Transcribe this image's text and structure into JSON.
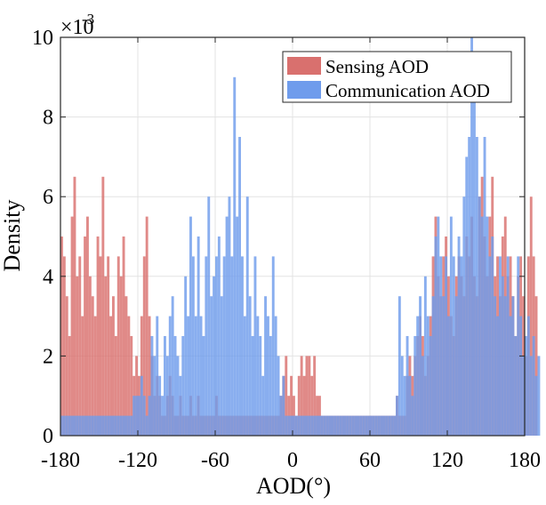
{
  "chart_data": {
    "type": "histogram",
    "title": "",
    "xlabel": "AOD(°)",
    "ylabel": "Density",
    "y_exponent_label": "×10",
    "y_exponent_power": "-3",
    "xlim": [
      -180,
      180
    ],
    "ylim": [
      0,
      0.01
    ],
    "x_ticks": [
      -180,
      -120,
      -60,
      0,
      60,
      120,
      180
    ],
    "x_tick_labels": [
      "-180",
      "-120",
      "-60",
      "0",
      "60",
      "120",
      "180"
    ],
    "y_ticks": [
      0,
      0.002,
      0.004,
      0.006,
      0.008,
      0.01
    ],
    "y_tick_labels": [
      "0",
      "2",
      "4",
      "6",
      "8",
      "10"
    ],
    "bin_width": 2,
    "grid": true,
    "legend_position": "top-right",
    "series": [
      {
        "name": "Sensing AOD",
        "color": "#d9706e",
        "bin_edges_start": -180,
        "values": [
          0.005,
          0.0045,
          0.0035,
          0.0025,
          0.0055,
          0.0065,
          0.004,
          0.0045,
          0.003,
          0.005,
          0.0055,
          0.004,
          0.0035,
          0.003,
          0.005,
          0.0045,
          0.0065,
          0.004,
          0.0045,
          0.003,
          0.0035,
          0.0025,
          0.0045,
          0.004,
          0.005,
          0.0035,
          0.003,
          0.0025,
          0.0015,
          0.002,
          0.0015,
          0.003,
          0.0045,
          0.0055,
          0.003,
          0.002,
          0.001,
          0.0015,
          0.001,
          0.0005,
          0.0005,
          0.001,
          0.0015,
          0.001,
          0.0005,
          0.0005,
          0.001,
          0.0005,
          0.0005,
          0.0005,
          0.001,
          0.0005,
          0.0005,
          0.001,
          0.0005,
          0.0005,
          0.0005,
          0.0005,
          0.0005,
          0.0005,
          0.001,
          0.0005,
          0.0005,
          0.0005,
          0.0005,
          0.0005,
          0.0005,
          0.0005,
          0.0005,
          0.0005,
          0.0005,
          0.0005,
          0.0005,
          0.0005,
          0.0005,
          0.0005,
          0.0005,
          0.0005,
          0.0005,
          0.0005,
          0.0005,
          0.0005,
          0.0005,
          0.0005,
          0.0005,
          0.001,
          0.0015,
          0.002,
          0.001,
          0.0015,
          0.001,
          0.0005,
          0.0015,
          0.002,
          0.0015,
          0.002,
          0.002,
          0.0015,
          0.002,
          0.001,
          0.001,
          0.0005,
          0.0005,
          0.0005,
          0.0005,
          0.0005,
          0.0005,
          0.0005,
          0.0005,
          0.0005,
          0.0005,
          0.0005,
          0.0005,
          0.0005,
          0.0005,
          0.0005,
          0.0005,
          0.0005,
          0.0005,
          0.0005,
          0.0005,
          0.0005,
          0.0005,
          0.0005,
          0.0005,
          0.0005,
          0.0005,
          0.0005,
          0.0005,
          0.0005,
          0.001,
          0.0005,
          0.0005,
          0.0005,
          0.0015,
          0.002,
          0.0015,
          0.002,
          0.0025,
          0.003,
          0.0025,
          0.0015,
          0.002,
          0.003,
          0.0045,
          0.0055,
          0.004,
          0.0035,
          0.0045,
          0.005,
          0.004,
          0.003,
          0.0025,
          0.004,
          0.0045,
          0.004,
          0.0035,
          0.005,
          0.0045,
          0.0055,
          0.004,
          0.0035,
          0.006,
          0.0065,
          0.005,
          0.004,
          0.0055,
          0.0065,
          0.004,
          0.0045,
          0.0035,
          0.005,
          0.0055,
          0.004,
          0.0045,
          0.0035,
          0.0025,
          0.004,
          0.0045,
          0.0035,
          0.002,
          0.0045,
          0.006,
          0.0045,
          0.0035
        ]
      },
      {
        "name": "Communication AOD",
        "color": "#6f9cec",
        "bin_edges_start": -180,
        "values": [
          0.0005,
          0.0005,
          0.0005,
          0.0005,
          0.0005,
          0.0005,
          0.0005,
          0.0005,
          0.0005,
          0.0005,
          0.0005,
          0.0005,
          0.0005,
          0.0005,
          0.0005,
          0.0005,
          0.0005,
          0.0005,
          0.0005,
          0.0005,
          0.0005,
          0.0005,
          0.0005,
          0.0005,
          0.0005,
          0.0005,
          0.0005,
          0.0005,
          0.001,
          0.001,
          0.001,
          0.0015,
          0.001,
          0.0005,
          0.001,
          0.0025,
          0.002,
          0.003,
          0.0015,
          0.001,
          0.0025,
          0.002,
          0.003,
          0.0035,
          0.0025,
          0.002,
          0.0015,
          0.0025,
          0.004,
          0.003,
          0.0055,
          0.0045,
          0.003,
          0.005,
          0.003,
          0.0025,
          0.0045,
          0.006,
          0.0035,
          0.004,
          0.0045,
          0.005,
          0.0035,
          0.0045,
          0.0055,
          0.006,
          0.0045,
          0.009,
          0.0055,
          0.0075,
          0.0045,
          0.003,
          0.006,
          0.0035,
          0.0025,
          0.0045,
          0.003,
          0.0025,
          0.0015,
          0.0035,
          0.003,
          0.0025,
          0.0045,
          0.003,
          0.002,
          0.001,
          0.0015,
          0.0005,
          0.0005,
          0.0005,
          0.0005,
          0.0005,
          0.0005,
          0.0005,
          0.0005,
          0.0005,
          0.0005,
          0.0005,
          0.0005,
          0.0005,
          0.0005,
          0.0005,
          0.0005,
          0.0005,
          0.0005,
          0.0005,
          0.0005,
          0.0005,
          0.0005,
          0.0005,
          0.0005,
          0.0005,
          0.0005,
          0.0005,
          0.0005,
          0.0005,
          0.0005,
          0.0005,
          0.0005,
          0.0005,
          0.0005,
          0.0005,
          0.0005,
          0.0005,
          0.0005,
          0.0005,
          0.0005,
          0.0005,
          0.0005,
          0.0005,
          0.001,
          0.0035,
          0.002,
          0.0015,
          0.0025,
          0.0015,
          0.001,
          0.0025,
          0.003,
          0.0035,
          0.002,
          0.004,
          0.003,
          0.0025,
          0.0035,
          0.005,
          0.0055,
          0.0045,
          0.0035,
          0.0045,
          0.003,
          0.0055,
          0.0045,
          0.0035,
          0.005,
          0.0045,
          0.006,
          0.007,
          0.0075,
          0.01,
          0.0085,
          0.0075,
          0.006,
          0.0055,
          0.0075,
          0.0055,
          0.0045,
          0.005,
          0.0035,
          0.003,
          0.0045,
          0.004,
          0.0035,
          0.0045,
          0.003,
          0.0035,
          0.0025,
          0.0045,
          0.003,
          0.002,
          0.0025,
          0.003,
          0.002,
          0.0025,
          0.0015,
          0.002
        ]
      }
    ]
  }
}
